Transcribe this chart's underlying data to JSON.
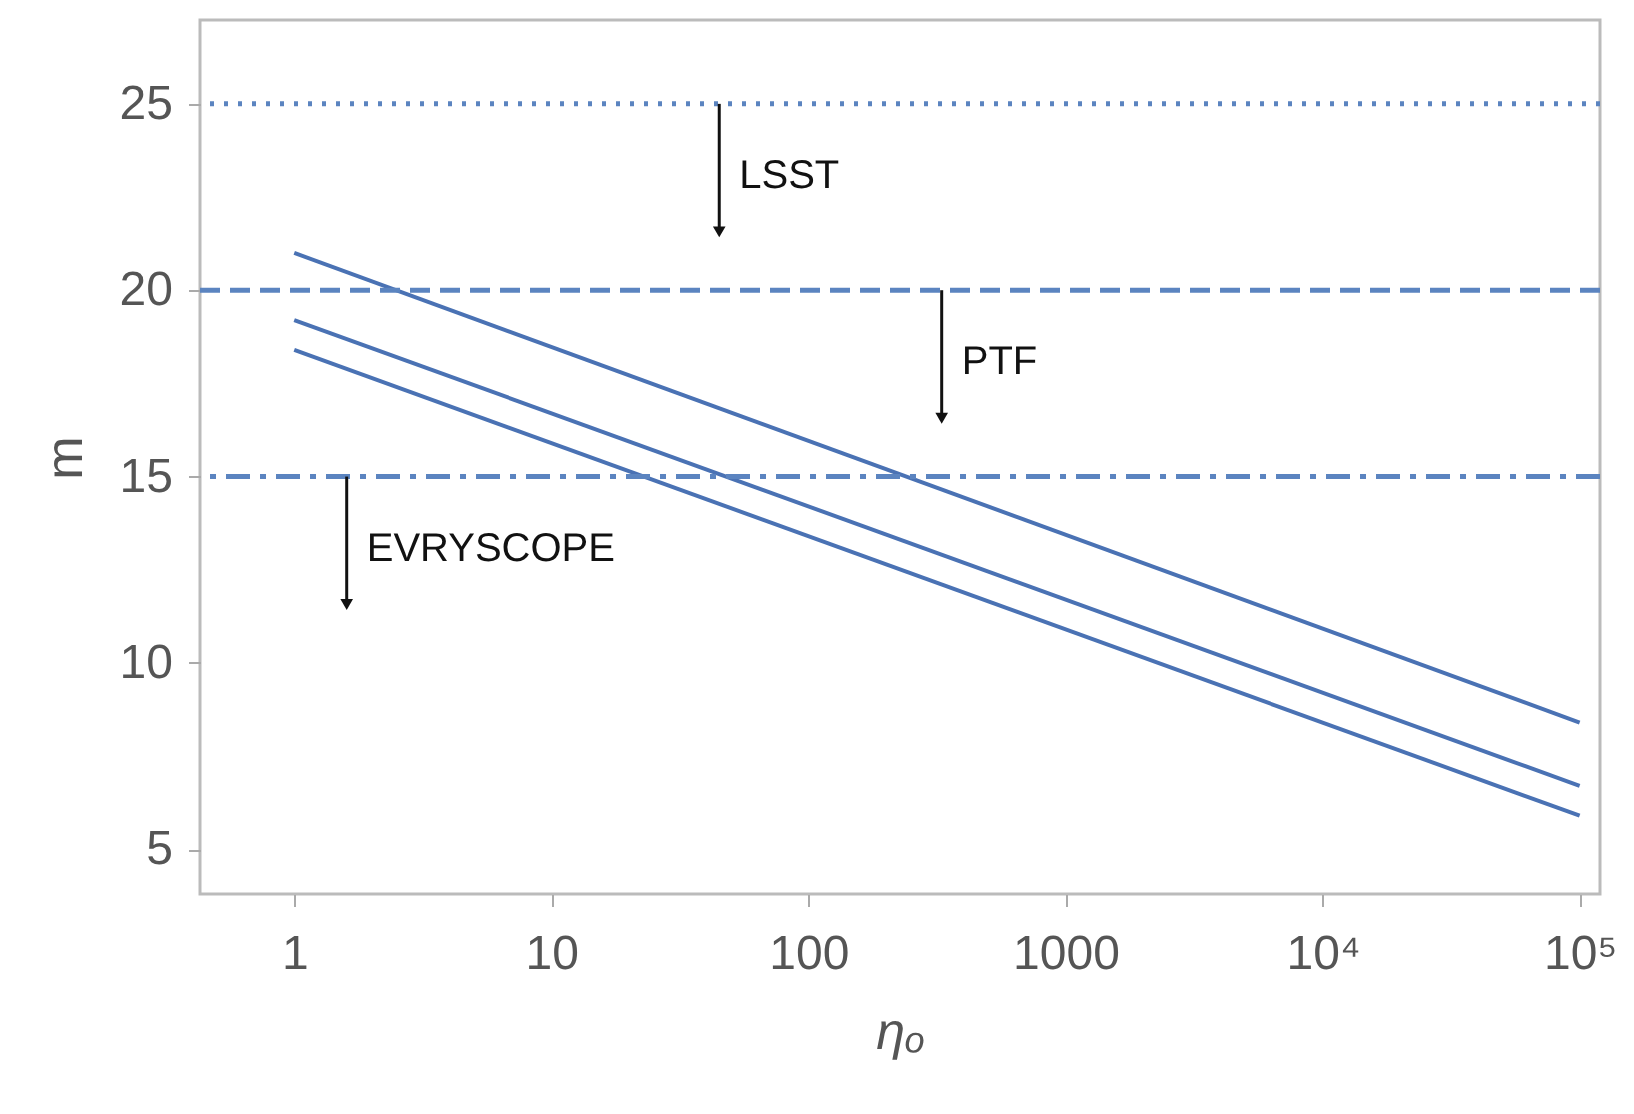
{
  "chart_data": {
    "type": "line",
    "xlabel": "ηₒ",
    "ylabel": "m",
    "log": "x",
    "grid": false,
    "marker": "none",
    "line_style": "solid",
    "xlim": [
      0.43,
      120000
    ],
    "xticks": [
      1,
      10,
      100,
      1000,
      {
        "value": 10000,
        "label": "10⁴"
      },
      {
        "value": 100000,
        "label": "10⁵"
      }
    ],
    "ylim": [
      3.8,
      27.25
    ],
    "yticks": [
      5,
      10,
      15,
      20,
      25
    ],
    "x": [
      1,
      100000
    ],
    "series": [
      {
        "color": "#4a72b4",
        "values": [
          21,
          8.4
        ]
      },
      {
        "color": "#4a72b4",
        "values": [
          19.2,
          6.7
        ]
      },
      {
        "color": "#4a72b4",
        "values": [
          18.4,
          5.9
        ]
      }
    ],
    "ref_lines": [
      {
        "axis": "y",
        "value": 25,
        "color": "#5b84c0",
        "line_style": "dotted"
      },
      {
        "axis": "y",
        "value": 20,
        "color": "#5b84c0",
        "line_style": "dashed"
      },
      {
        "axis": "y",
        "value": 15,
        "color": "#5b84c0",
        "line_style": "dashdot"
      }
    ],
    "annotations": [
      {
        "text": "LSST",
        "x": 45,
        "y": 25
      },
      {
        "text": "PTF",
        "x": 330,
        "y": 20
      },
      {
        "text": "EVRYSCOPE",
        "x": 1.6,
        "y": 15
      }
    ]
  }
}
